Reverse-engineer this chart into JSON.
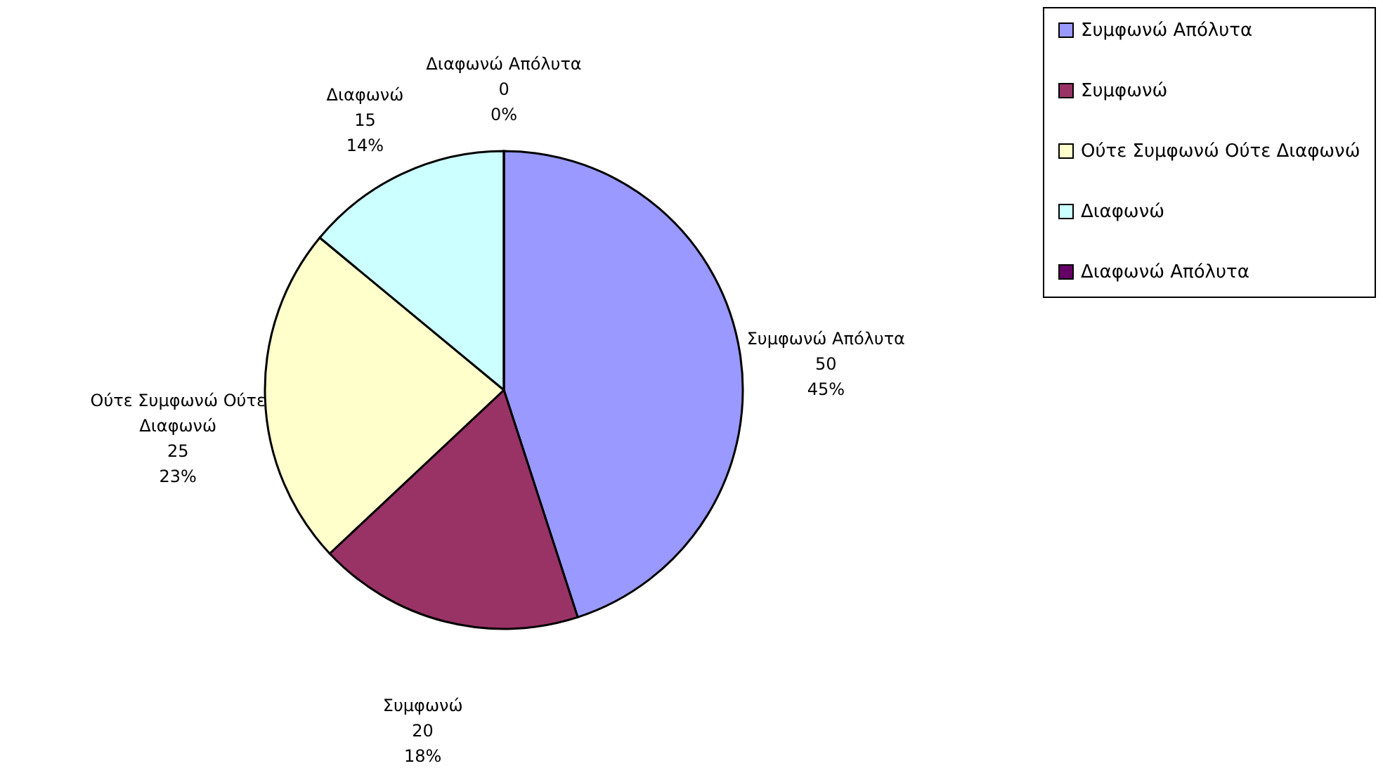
{
  "chart_data": {
    "type": "pie",
    "categories": [
      "Συμφωνώ Απόλυτα",
      "Συμφωνώ",
      "Ούτε Συμφωνώ Ούτε Διαφωνώ",
      "Διαφωνώ",
      "Διαφωνώ Απόλυτα"
    ],
    "values": [
      45,
      18,
      23,
      14,
      0
    ],
    "value_labels": [
      "50\n45%",
      "20\n18%",
      "25\n23%",
      "15\n14%",
      "0\n0%"
    ],
    "colors": [
      "#9999ff",
      "#993366",
      "#ffffcc",
      "#ccffff",
      "#660066"
    ],
    "legend": "right"
  }
}
